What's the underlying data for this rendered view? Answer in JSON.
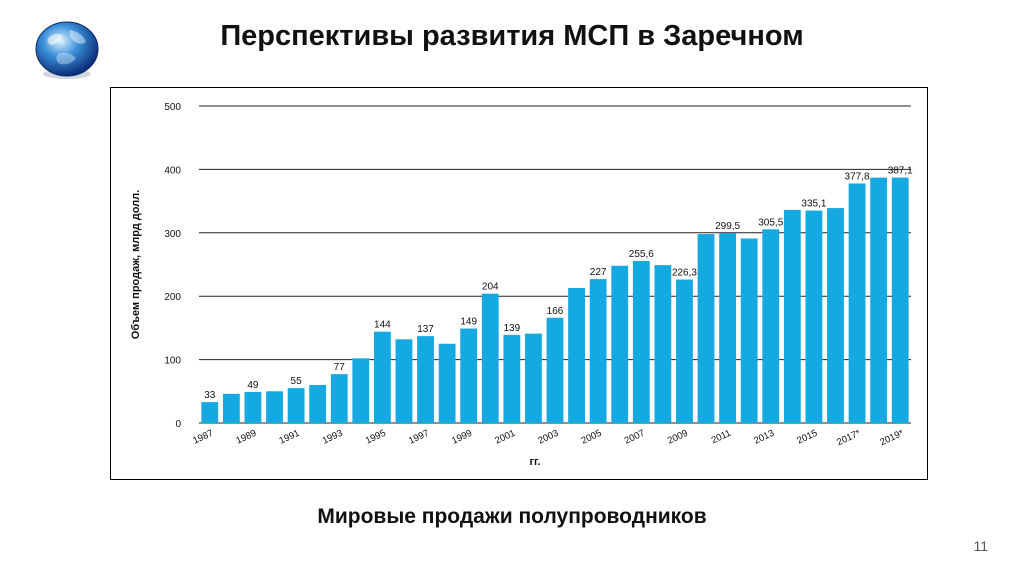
{
  "slide": {
    "title": "Перспективы развития МСП в Заречном",
    "caption": "Мировые продажи полупроводников",
    "page_number": "11"
  },
  "logo": {
    "icon": "globe-icon"
  },
  "colors": {
    "bar": "#14A9E1",
    "grid": "#222222",
    "text": "#111111"
  },
  "chart_data": {
    "type": "bar",
    "title": "",
    "xlabel": "гг.",
    "ylabel": "Объем продаж, млрд долл.",
    "ylim": [
      0,
      500
    ],
    "yticks": [
      0,
      100,
      200,
      300,
      400,
      500
    ],
    "grid": true,
    "categories": [
      "1987",
      "1988",
      "1989",
      "1990",
      "1991",
      "1992",
      "1993",
      "1994",
      "1995",
      "1996",
      "1997",
      "1998",
      "1999",
      "2000",
      "2001",
      "2002",
      "2003",
      "2004",
      "2005",
      "2006",
      "2007",
      "2008",
      "2009",
      "2010",
      "2011",
      "2012",
      "2013",
      "2014",
      "2015",
      "2016",
      "2017*",
      "2018*",
      "2019*"
    ],
    "xtick_labels": [
      "1987",
      "",
      "1989",
      "",
      "1991",
      "",
      "1993",
      "",
      "1995",
      "",
      "1997",
      "",
      "1999",
      "",
      "2001",
      "",
      "2003",
      "",
      "2005",
      "",
      "2007",
      "",
      "2009",
      "",
      "2011",
      "",
      "2013",
      "",
      "2015",
      "",
      "2017*",
      "",
      "2019*"
    ],
    "values": [
      33,
      46,
      49,
      50,
      55,
      60,
      77,
      102,
      144,
      132,
      137,
      125,
      149,
      204,
      139,
      141,
      166,
      213,
      227,
      248,
      255.6,
      249,
      226.3,
      298,
      299.5,
      291,
      305.5,
      336,
      335.1,
      339,
      377.8,
      387,
      387.1
    ],
    "data_labels": [
      "33",
      "",
      "49",
      "",
      "55",
      "",
      "77",
      "",
      "144",
      "",
      "137",
      "",
      "149",
      "204",
      "139",
      "",
      "166",
      "",
      "227",
      "",
      "255,6",
      "",
      "226,3",
      "",
      "299,5",
      "",
      "305,5",
      "",
      "335,1",
      "",
      "377,8",
      "",
      "387,1"
    ]
  }
}
